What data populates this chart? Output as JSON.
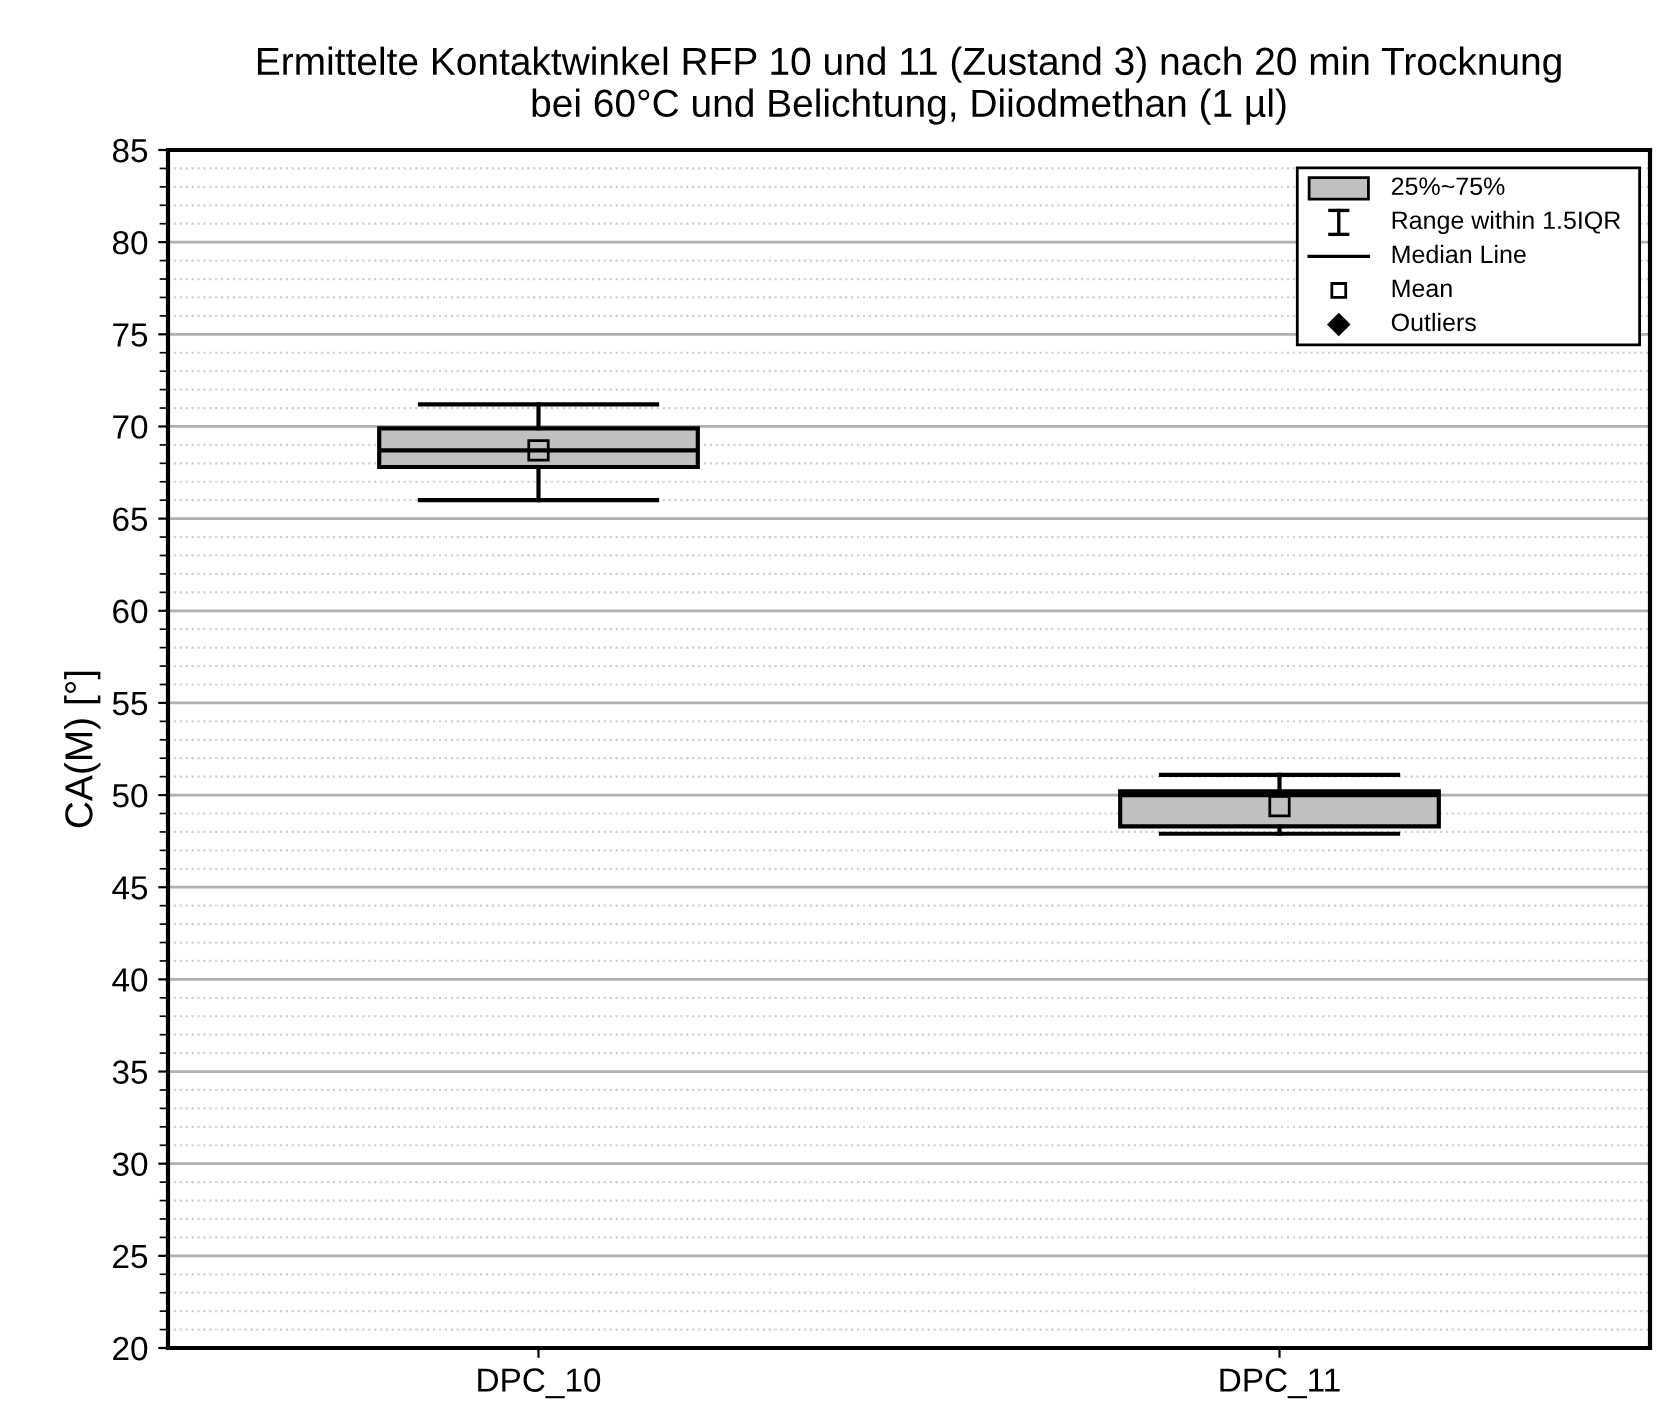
{
  "chart_data": {
    "type": "box",
    "title": "Ermittelte Kontaktwinkel RFP 10 und 11 (Zustand 3) nach 20 min Trocknung\nbei 60°C und Belichtung, Diiodmethan (1 µl)",
    "ylabel": "CA(M) [°]",
    "categories": [
      "DPC_10",
      "DPC_11"
    ],
    "series": [
      {
        "color": "#c0c0c0",
        "boxes": [
          {
            "low": 66.0,
            "q1": 67.8,
            "median": 68.7,
            "q3": 69.9,
            "high": 71.2,
            "mean": 68.7
          },
          {
            "low": 47.9,
            "q1": 48.3,
            "median": 50.0,
            "q3": 50.2,
            "high": 51.1,
            "mean": 49.4
          }
        ]
      }
    ],
    "ylim": [
      20,
      85
    ],
    "yticks": [
      20,
      25,
      30,
      35,
      40,
      45,
      50,
      55,
      60,
      65,
      70,
      75,
      80,
      85
    ],
    "grid": "y",
    "annotations": [
      "25%~75%",
      "Range within 1.5IQR",
      "Median Line",
      "Mean",
      "Outliers"
    ]
  }
}
